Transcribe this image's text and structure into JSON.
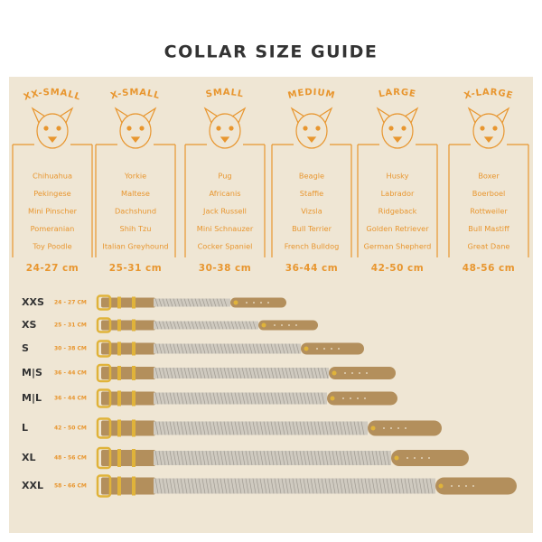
{
  "title": "COLLAR SIZE GUIDE",
  "sizes": [
    {
      "name": "XX-SMALL",
      "breeds": [
        "Chihuahua",
        "Pekingese",
        "Mini Pinscher",
        "Pomeranian",
        "Toy Poodle"
      ],
      "range": "24-27 cm"
    },
    {
      "name": "X-SMALL",
      "breeds": [
        "Yorkie",
        "Maltese",
        "Dachshund",
        "Shih Tzu",
        "Italian Greyhound"
      ],
      "range": "25-31 cm"
    },
    {
      "name": "SMALL",
      "breeds": [
        "Pug",
        "Africanis",
        "Jack Russell",
        "Mini Schnauzer",
        "Cocker Spaniel"
      ],
      "range": "30-38 cm"
    },
    {
      "name": "MEDIUM",
      "breeds": [
        "Beagle",
        "Staffie",
        "Vizsla",
        "Bull Terrier",
        "French Bulldog"
      ],
      "range": "36-44 cm"
    },
    {
      "name": "LARGE",
      "breeds": [
        "Husky",
        "Labrador",
        "Ridgeback",
        "Golden Retriever",
        "German Shepherd"
      ],
      "range": "42-50 cm"
    },
    {
      "name": "X-LARGE",
      "breeds": [
        "Boxer",
        "Boerboel",
        "Rottweiler",
        "Bull Mastiff",
        "Great Dane"
      ],
      "range": "48-56 cm"
    }
  ],
  "collars": [
    {
      "size": "XXS",
      "range": "24 - 27 CM"
    },
    {
      "size": "XS",
      "range": "25 - 31 CM"
    },
    {
      "size": "S",
      "range": "30 - 38 CM"
    },
    {
      "size": "M|S",
      "range": "36 - 44 CM"
    },
    {
      "size": "M|L",
      "range": "36 - 44 CM"
    },
    {
      "size": "L",
      "range": "42 - 50 CM"
    },
    {
      "size": "XL",
      "range": "48 - 56 CM"
    },
    {
      "size": "XXL",
      "range": "58 - 66 CM"
    }
  ]
}
